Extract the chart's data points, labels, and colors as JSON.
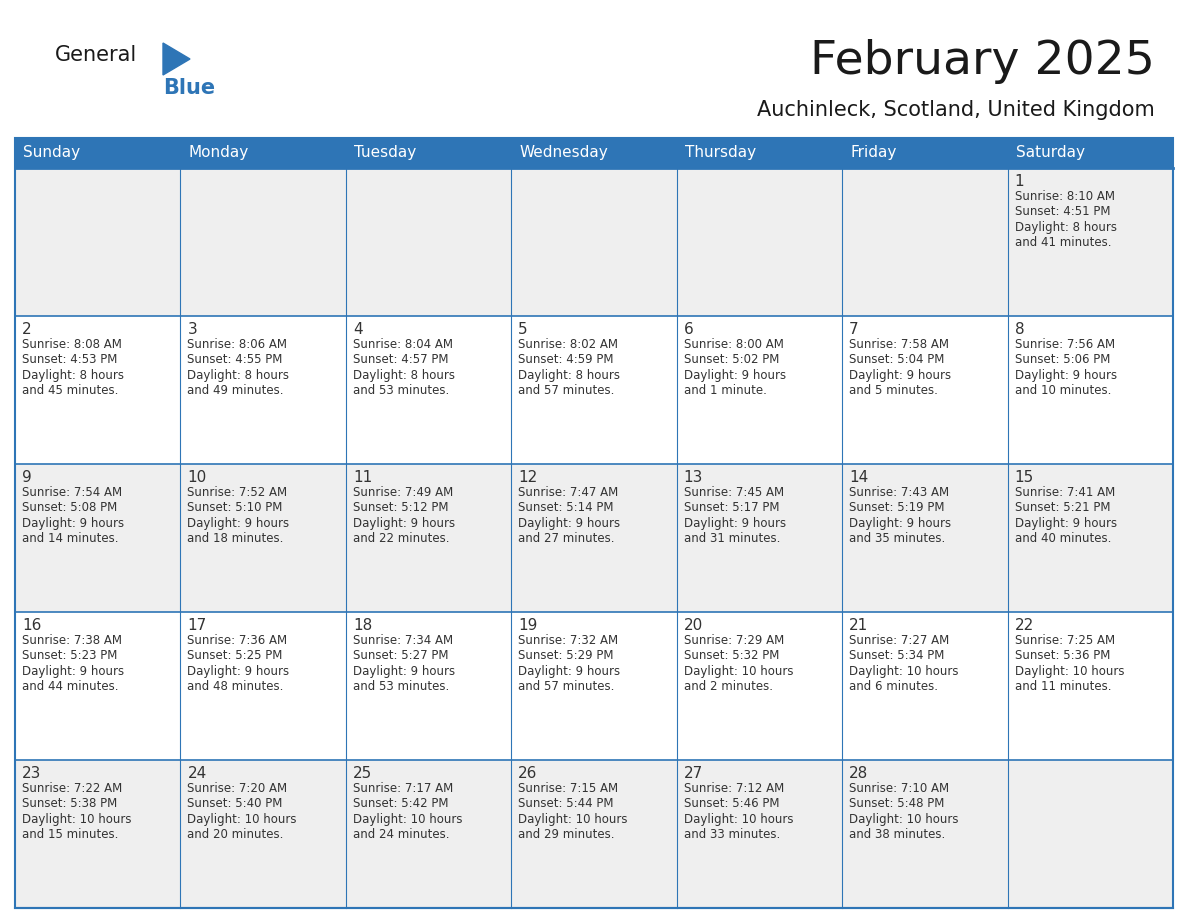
{
  "title": "February 2025",
  "subtitle": "Auchinleck, Scotland, United Kingdom",
  "days_of_week": [
    "Sunday",
    "Monday",
    "Tuesday",
    "Wednesday",
    "Thursday",
    "Friday",
    "Saturday"
  ],
  "header_bg": "#2E75B6",
  "header_text": "#FFFFFF",
  "cell_bg_gray": "#EFEFEF",
  "cell_bg_white": "#FFFFFF",
  "cell_border_color": "#2E75B6",
  "row_separator_color": "#2E75B6",
  "day_number_color": "#333333",
  "info_text_color": "#333333",
  "title_color": "#1A1A1A",
  "subtitle_color": "#1A1A1A",
  "logo_general_color": "#1A1A1A",
  "logo_blue_color": "#2E75B6",
  "weeks": [
    [
      {
        "day": null,
        "info": ""
      },
      {
        "day": null,
        "info": ""
      },
      {
        "day": null,
        "info": ""
      },
      {
        "day": null,
        "info": ""
      },
      {
        "day": null,
        "info": ""
      },
      {
        "day": null,
        "info": ""
      },
      {
        "day": 1,
        "info": "Sunrise: 8:10 AM\nSunset: 4:51 PM\nDaylight: 8 hours\nand 41 minutes."
      }
    ],
    [
      {
        "day": 2,
        "info": "Sunrise: 8:08 AM\nSunset: 4:53 PM\nDaylight: 8 hours\nand 45 minutes."
      },
      {
        "day": 3,
        "info": "Sunrise: 8:06 AM\nSunset: 4:55 PM\nDaylight: 8 hours\nand 49 minutes."
      },
      {
        "day": 4,
        "info": "Sunrise: 8:04 AM\nSunset: 4:57 PM\nDaylight: 8 hours\nand 53 minutes."
      },
      {
        "day": 5,
        "info": "Sunrise: 8:02 AM\nSunset: 4:59 PM\nDaylight: 8 hours\nand 57 minutes."
      },
      {
        "day": 6,
        "info": "Sunrise: 8:00 AM\nSunset: 5:02 PM\nDaylight: 9 hours\nand 1 minute."
      },
      {
        "day": 7,
        "info": "Sunrise: 7:58 AM\nSunset: 5:04 PM\nDaylight: 9 hours\nand 5 minutes."
      },
      {
        "day": 8,
        "info": "Sunrise: 7:56 AM\nSunset: 5:06 PM\nDaylight: 9 hours\nand 10 minutes."
      }
    ],
    [
      {
        "day": 9,
        "info": "Sunrise: 7:54 AM\nSunset: 5:08 PM\nDaylight: 9 hours\nand 14 minutes."
      },
      {
        "day": 10,
        "info": "Sunrise: 7:52 AM\nSunset: 5:10 PM\nDaylight: 9 hours\nand 18 minutes."
      },
      {
        "day": 11,
        "info": "Sunrise: 7:49 AM\nSunset: 5:12 PM\nDaylight: 9 hours\nand 22 minutes."
      },
      {
        "day": 12,
        "info": "Sunrise: 7:47 AM\nSunset: 5:14 PM\nDaylight: 9 hours\nand 27 minutes."
      },
      {
        "day": 13,
        "info": "Sunrise: 7:45 AM\nSunset: 5:17 PM\nDaylight: 9 hours\nand 31 minutes."
      },
      {
        "day": 14,
        "info": "Sunrise: 7:43 AM\nSunset: 5:19 PM\nDaylight: 9 hours\nand 35 minutes."
      },
      {
        "day": 15,
        "info": "Sunrise: 7:41 AM\nSunset: 5:21 PM\nDaylight: 9 hours\nand 40 minutes."
      }
    ],
    [
      {
        "day": 16,
        "info": "Sunrise: 7:38 AM\nSunset: 5:23 PM\nDaylight: 9 hours\nand 44 minutes."
      },
      {
        "day": 17,
        "info": "Sunrise: 7:36 AM\nSunset: 5:25 PM\nDaylight: 9 hours\nand 48 minutes."
      },
      {
        "day": 18,
        "info": "Sunrise: 7:34 AM\nSunset: 5:27 PM\nDaylight: 9 hours\nand 53 minutes."
      },
      {
        "day": 19,
        "info": "Sunrise: 7:32 AM\nSunset: 5:29 PM\nDaylight: 9 hours\nand 57 minutes."
      },
      {
        "day": 20,
        "info": "Sunrise: 7:29 AM\nSunset: 5:32 PM\nDaylight: 10 hours\nand 2 minutes."
      },
      {
        "day": 21,
        "info": "Sunrise: 7:27 AM\nSunset: 5:34 PM\nDaylight: 10 hours\nand 6 minutes."
      },
      {
        "day": 22,
        "info": "Sunrise: 7:25 AM\nSunset: 5:36 PM\nDaylight: 10 hours\nand 11 minutes."
      }
    ],
    [
      {
        "day": 23,
        "info": "Sunrise: 7:22 AM\nSunset: 5:38 PM\nDaylight: 10 hours\nand 15 minutes."
      },
      {
        "day": 24,
        "info": "Sunrise: 7:20 AM\nSunset: 5:40 PM\nDaylight: 10 hours\nand 20 minutes."
      },
      {
        "day": 25,
        "info": "Sunrise: 7:17 AM\nSunset: 5:42 PM\nDaylight: 10 hours\nand 24 minutes."
      },
      {
        "day": 26,
        "info": "Sunrise: 7:15 AM\nSunset: 5:44 PM\nDaylight: 10 hours\nand 29 minutes."
      },
      {
        "day": 27,
        "info": "Sunrise: 7:12 AM\nSunset: 5:46 PM\nDaylight: 10 hours\nand 33 minutes."
      },
      {
        "day": 28,
        "info": "Sunrise: 7:10 AM\nSunset: 5:48 PM\nDaylight: 10 hours\nand 38 minutes."
      },
      {
        "day": null,
        "info": ""
      }
    ]
  ],
  "row_bg_colors": [
    "#EFEFEF",
    "#FFFFFF",
    "#EFEFEF",
    "#FFFFFF",
    "#EFEFEF"
  ]
}
